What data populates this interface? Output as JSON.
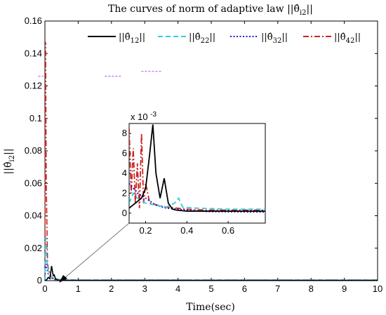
{
  "chart_data": [
    {
      "type": "line",
      "title": "The curves of norm of adaptive law ||θ̂i2||",
      "xlabel": "Time(sec)",
      "ylabel": "||θ̂i2||",
      "xlim": [
        0,
        10
      ],
      "ylim": [
        0,
        0.16
      ],
      "xticks": [
        0,
        1,
        2,
        3,
        4,
        5,
        6,
        7,
        8,
        9,
        10
      ],
      "yticks": [
        0,
        0.02,
        0.04,
        0.06,
        0.08,
        0.1,
        0.12,
        0.14,
        0.16
      ],
      "xtick_labels": [
        "0",
        "1",
        "2",
        "3",
        "4",
        "5",
        "6",
        "7",
        "8",
        "9",
        "10"
      ],
      "ytick_labels": [
        "0",
        "0.02",
        "0.04",
        "0.06",
        "0.08",
        "0.1",
        "0.12",
        "0.14",
        "0.16"
      ],
      "legend_position": "top",
      "series": [
        {
          "name": "||θ̂12||",
          "color": "#000000",
          "style": "solid",
          "x": [
            0,
            0.05,
            0.1,
            0.15,
            0.2,
            0.25,
            0.28,
            0.32,
            0.4,
            1,
            10
          ],
          "y": [
            0,
            0.0005,
            0.002,
            0.0012,
            0.009,
            0.003,
            0.0035,
            0.001,
            0.0002,
            0.0002,
            0.0002
          ]
        },
        {
          "name": "||θ̂22||",
          "color": "#33ccdd",
          "style": "dashed",
          "x": [
            0,
            0.02,
            0.05,
            0.1,
            0.2,
            0.35,
            0.5,
            1,
            10
          ],
          "y": [
            0,
            0.028,
            0.015,
            0.006,
            0.002,
            0.0012,
            0.0005,
            0.0004,
            0.0004
          ]
        },
        {
          "name": "||θ̂32||",
          "color": "#1a1acc",
          "style": "dotted",
          "x": [
            0,
            0.02,
            0.05,
            0.1,
            0.2,
            0.3,
            0.5,
            1,
            10
          ],
          "y": [
            0,
            0.013,
            0.008,
            0.004,
            0.0015,
            0.0006,
            0.0003,
            0.0001,
            0.0001
          ]
        },
        {
          "name": "||θ̂42||",
          "color": "#cc2222",
          "style": "dashdot",
          "x": [
            0,
            0.02,
            0.04,
            0.08,
            0.12,
            0.2,
            0.3,
            0.5,
            1,
            10
          ],
          "y": [
            0,
            0.147,
            0.06,
            0.01,
            0.006,
            0.002,
            0.001,
            0.0005,
            0.0003,
            0.0003
          ]
        }
      ],
      "stray_marks": [
        {
          "color": "#bb66ff",
          "y": 0.126,
          "x": [
            -0.2,
            -0.05
          ]
        },
        {
          "color": "#bb66ff",
          "y": 0.126,
          "x": [
            1.8,
            2.3
          ]
        },
        {
          "color": "#bb66ff",
          "y": 0.129,
          "x": [
            2.9,
            3.5
          ]
        }
      ]
    },
    {
      "type": "line",
      "title": "",
      "exponent_label": "x 10",
      "exponent_power": "-3",
      "xlim": [
        0.12,
        0.78
      ],
      "ylim": [
        -1,
        9
      ],
      "xticks": [
        0.2,
        0.4,
        0.6
      ],
      "yticks": [
        0,
        2,
        4,
        6,
        8
      ],
      "xtick_labels": [
        "0.2",
        "0.4",
        "0.6"
      ],
      "ytick_labels": [
        "0",
        "2",
        "4",
        "6",
        "8"
      ],
      "series": [
        {
          "name": "||θ̂12||",
          "color": "#000000",
          "style": "solid",
          "x": [
            0.12,
            0.15,
            0.18,
            0.2,
            0.22,
            0.235,
            0.25,
            0.27,
            0.29,
            0.31,
            0.33,
            0.35,
            0.4,
            0.78
          ],
          "y": [
            0.5,
            1.0,
            1.5,
            2.5,
            6.0,
            8.9,
            4.0,
            1.5,
            3.5,
            1.0,
            0.4,
            0.3,
            0.2,
            0.2
          ]
        },
        {
          "name": "||θ̂22||",
          "color": "#33ccdd",
          "style": "dashed",
          "x": [
            0.12,
            0.14,
            0.16,
            0.2,
            0.25,
            0.3,
            0.34,
            0.36,
            0.38,
            0.45,
            0.6,
            0.78
          ],
          "y": [
            1.0,
            2.0,
            1.5,
            1.0,
            0.8,
            0.6,
            1.0,
            1.5,
            0.6,
            0.5,
            0.4,
            0.4
          ]
        },
        {
          "name": "||θ̂32||",
          "color": "#1a1acc",
          "style": "dotted",
          "x": [
            0.12,
            0.14,
            0.16,
            0.2,
            0.25,
            0.3,
            0.35,
            0.4,
            0.5,
            0.78
          ],
          "y": [
            3.0,
            2.5,
            2.0,
            1.5,
            0.8,
            0.5,
            0.4,
            0.3,
            0.15,
            0.1
          ]
        },
        {
          "name": "||θ̂42||",
          "color": "#cc2222",
          "style": "dashdot",
          "x": [
            0.12,
            0.13,
            0.14,
            0.15,
            0.16,
            0.17,
            0.18,
            0.19,
            0.2,
            0.22,
            0.26,
            0.3,
            0.35,
            0.4,
            0.5,
            0.78
          ],
          "y": [
            8.5,
            2.0,
            6.5,
            1.0,
            5.0,
            0.5,
            8.0,
            1.0,
            3.0,
            1.0,
            0.8,
            0.6,
            0.5,
            0.4,
            0.3,
            0.3
          ]
        }
      ]
    }
  ]
}
